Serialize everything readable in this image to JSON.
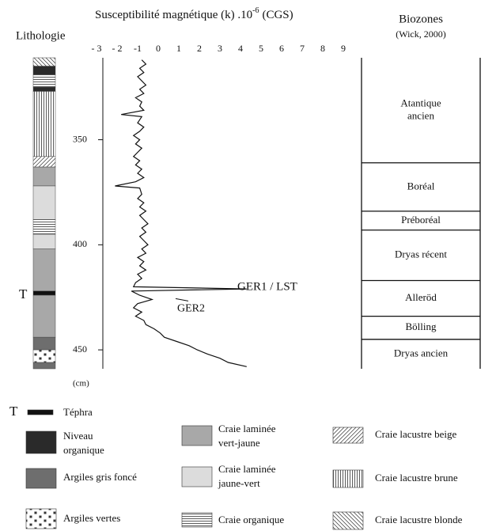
{
  "chart_data": {
    "type": "line",
    "title_parts": [
      "Susceptibilité magnétique (k) .10",
      "-6",
      "(CGS)"
    ],
    "y_label": "(cm)",
    "xlim": [
      -3,
      9
    ],
    "xticks": [
      {
        "value": -3,
        "label": "- 3"
      },
      {
        "value": -2,
        "label": "- 2"
      },
      -1,
      0,
      1,
      2,
      3,
      4,
      5,
      6,
      7,
      8,
      9
    ],
    "ylim": [
      311,
      459
    ],
    "y_inverted": true,
    "yticks": [
      350,
      400,
      450
    ],
    "x": [
      312,
      314,
      316,
      318,
      320,
      322,
      324,
      326,
      328,
      330,
      332,
      334,
      336,
      338,
      339,
      342,
      344,
      346,
      348,
      350,
      352,
      354,
      356,
      358,
      360,
      362,
      364,
      366,
      368,
      370,
      372,
      373,
      376,
      378,
      380,
      382,
      384,
      386,
      388,
      390,
      392,
      394,
      396,
      398,
      400,
      402,
      404,
      406,
      408,
      410,
      412,
      414,
      416,
      418,
      420,
      421,
      422,
      424,
      426,
      428,
      430,
      432,
      434,
      436,
      438,
      440,
      442,
      444,
      446,
      448,
      450,
      452,
      454,
      456,
      458
    ],
    "series": [
      {
        "color": "#111111",
        "values": [
          -0.8,
          -0.6,
          -0.9,
          -0.7,
          -1.0,
          -0.8,
          -0.6,
          -0.9,
          -0.7,
          -1.1,
          -0.8,
          -0.9,
          -0.7,
          -1.8,
          -0.8,
          -1.0,
          -0.7,
          -0.9,
          -1.2,
          -0.9,
          -1.1,
          -0.8,
          -1.0,
          -1.2,
          -0.9,
          -1.1,
          -0.8,
          -1.0,
          -0.7,
          -1.1,
          -2.1,
          -0.9,
          -0.8,
          -1.0,
          -0.7,
          -0.9,
          -0.6,
          -0.9,
          -0.7,
          -0.5,
          -0.8,
          -0.6,
          -0.9,
          -0.7,
          -0.5,
          -0.8,
          -0.6,
          -1.0,
          -0.7,
          -0.9,
          -0.6,
          -1.0,
          -0.8,
          -1.1,
          -1.2,
          4.3,
          -1.3,
          -0.9,
          -0.3,
          -1.0,
          -1.2,
          -0.8,
          -1.1,
          -0.7,
          -0.6,
          -0.2,
          0.1,
          0.3,
          0.9,
          1.5,
          1.9,
          2.4,
          3.0,
          3.4,
          4.3
        ]
      }
    ],
    "annotations": [
      {
        "text": "GER1 / LST",
        "depth": 421
      },
      {
        "text": "GER2",
        "depth": 426
      }
    ],
    "lithology": {
      "title": "Lithologie",
      "marker": {
        "label": "T",
        "depth": 424
      },
      "layers": [
        {
          "top": 311,
          "bottom": 315,
          "type": "Craie lacustre blonde"
        },
        {
          "top": 315,
          "bottom": 319,
          "type": "Niveau organique"
        },
        {
          "top": 319,
          "bottom": 325,
          "type": "Craie organique"
        },
        {
          "top": 325,
          "bottom": 327,
          "type": "Niveau organique"
        },
        {
          "top": 327,
          "bottom": 358,
          "type": "Craie lacustre brune"
        },
        {
          "top": 358,
          "bottom": 363,
          "type": "Craie lacustre beige"
        },
        {
          "top": 363,
          "bottom": 372,
          "type": "Craie laminée vert-jaune"
        },
        {
          "top": 372,
          "bottom": 388,
          "type": "Craie laminée jaune-vert"
        },
        {
          "top": 388,
          "bottom": 395,
          "type": "Craie organique"
        },
        {
          "top": 395,
          "bottom": 402,
          "type": "Craie laminée jaune-vert"
        },
        {
          "top": 402,
          "bottom": 422,
          "type": "Craie laminée vert-jaune"
        },
        {
          "top": 422,
          "bottom": 424,
          "type": "Téphra"
        },
        {
          "top": 424,
          "bottom": 444,
          "type": "Craie laminée vert-jaune"
        },
        {
          "top": 444,
          "bottom": 450,
          "type": "Argiles gris foncé"
        },
        {
          "top": 450,
          "bottom": 456,
          "type": "Argiles vertes"
        },
        {
          "top": 456,
          "bottom": 459,
          "type": "Argiles gris foncé"
        }
      ]
    },
    "biozones": {
      "title": "Biozones",
      "subtitle": "(Wick, 2000)",
      "zones": [
        {
          "lines": [
            "Atantique",
            "ancien"
          ],
          "top": 311,
          "bottom": 361
        },
        {
          "lines": [
            "Boréal"
          ],
          "top": 361,
          "bottom": 384
        },
        {
          "lines": [
            "Préboréal"
          ],
          "top": 384,
          "bottom": 393
        },
        {
          "lines": [
            "Dryas récent"
          ],
          "top": 393,
          "bottom": 417
        },
        {
          "lines": [
            "Alleröd"
          ],
          "top": 417,
          "bottom": 434
        },
        {
          "lines": [
            "Bölling"
          ],
          "top": 434,
          "bottom": 445
        },
        {
          "lines": [
            "Dryas ancien"
          ],
          "top": 445,
          "bottom": 459
        }
      ]
    },
    "legend": [
      {
        "marker": "T",
        "lines": [
          "Téphra"
        ]
      },
      {
        "lines": [
          "Niveau",
          "organique"
        ]
      },
      {
        "lines": [
          "Argiles gris foncé"
        ]
      },
      {
        "lines": [
          "Argiles vertes"
        ]
      },
      {
        "lines": [
          "Craie laminée",
          "vert-jaune"
        ]
      },
      {
        "lines": [
          "Craie laminée",
          "jaune-vert"
        ]
      },
      {
        "lines": [
          "Craie organique"
        ]
      },
      {
        "lines": [
          "Craie lacustre beige"
        ]
      },
      {
        "lines": [
          "Craie lacustre brune"
        ]
      },
      {
        "lines": [
          "Craie lacustre blonde"
        ]
      }
    ]
  }
}
